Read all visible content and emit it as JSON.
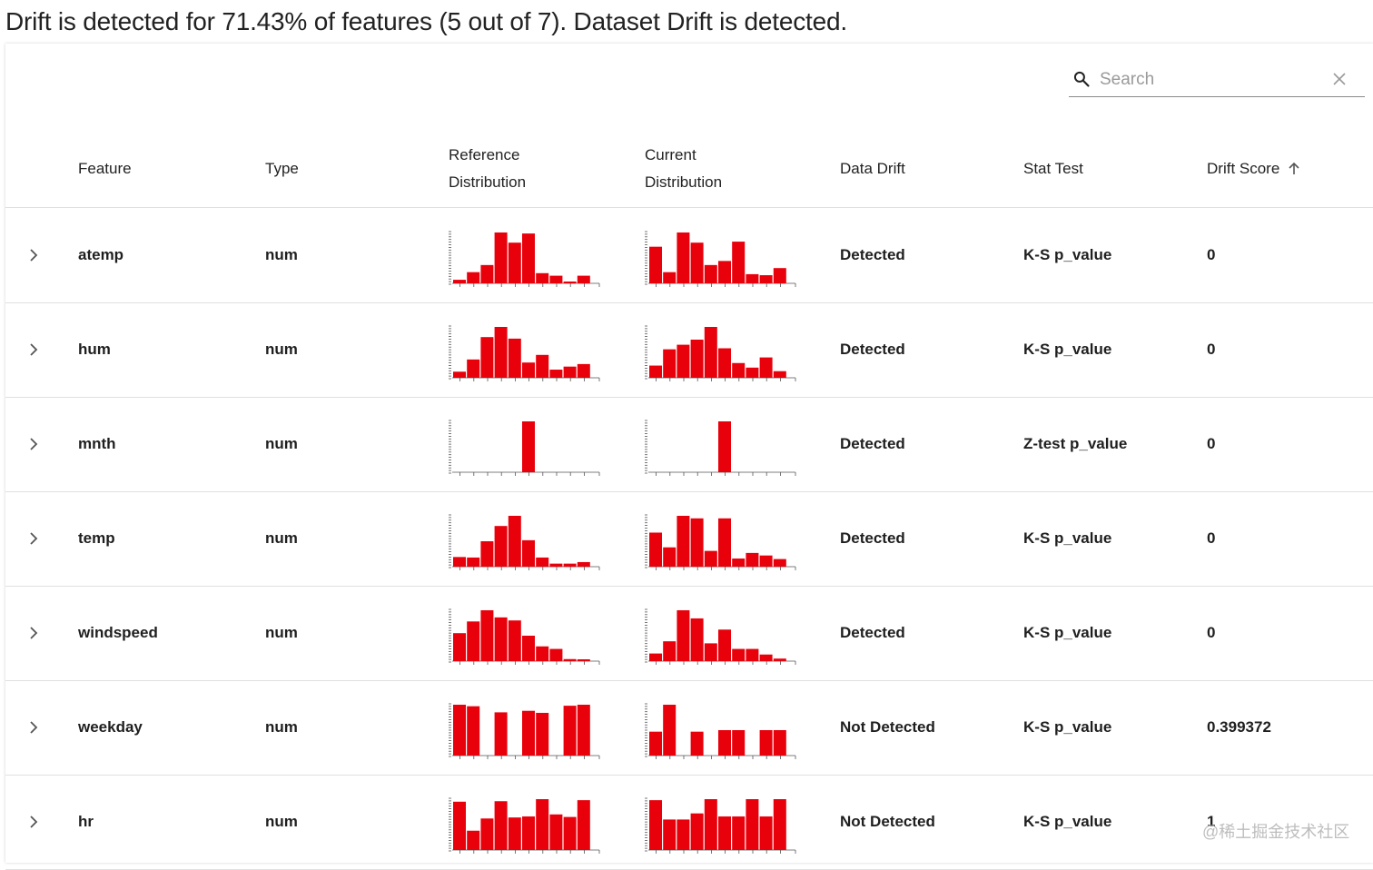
{
  "summary": "Drift is detected for 71.43% of features (5 out of 7). Dataset Drift is detected.",
  "search": {
    "placeholder": "Search",
    "value": ""
  },
  "columns": {
    "feature": "Feature",
    "type": "Type",
    "ref_line1": "Reference",
    "ref_line2": "Distribution",
    "cur_line1": "Current",
    "cur_line2": "Distribution",
    "drift": "Data Drift",
    "stat": "Stat Test",
    "score": "Drift Score"
  },
  "colors": {
    "bar": "#e8000b",
    "axis": "#555555",
    "divider": "#e0e0e0"
  },
  "icons": {
    "search": "search-icon",
    "clear": "close-icon",
    "sort": "arrow-up-icon",
    "expand": "chevron-right-icon"
  },
  "rows": [
    {
      "feature": "atemp",
      "type": "num",
      "drift": "Detected",
      "stat": "K-S p_value",
      "score": "0",
      "ref": [
        0.07,
        0.22,
        0.36,
        1.0,
        0.8,
        0.98,
        0.2,
        0.15,
        0.02,
        0.15
      ],
      "cur": [
        0.72,
        0.22,
        1.0,
        0.8,
        0.36,
        0.44,
        0.82,
        0.18,
        0.16,
        0.3
      ]
    },
    {
      "feature": "hum",
      "type": "num",
      "drift": "Detected",
      "stat": "K-S p_value",
      "score": "0",
      "ref": [
        0.12,
        0.36,
        0.8,
        1.0,
        0.77,
        0.3,
        0.45,
        0.16,
        0.22,
        0.27
      ],
      "cur": [
        0.24,
        0.56,
        0.65,
        0.75,
        1.0,
        0.58,
        0.29,
        0.2,
        0.4,
        0.13
      ]
    },
    {
      "feature": "mnth",
      "type": "num",
      "drift": "Detected",
      "stat": "Z-test p_value",
      "score": "0",
      "ref": [
        0,
        0,
        0,
        0,
        0,
        1.0,
        0,
        0,
        0,
        0
      ],
      "cur": [
        0,
        0,
        0,
        0,
        0,
        1.0,
        0,
        0,
        0,
        0
      ]
    },
    {
      "feature": "temp",
      "type": "num",
      "drift": "Detected",
      "stat": "K-S p_value",
      "score": "0",
      "ref": [
        0.19,
        0.18,
        0.5,
        0.8,
        1.0,
        0.52,
        0.18,
        0.06,
        0.06,
        0.09
      ],
      "cur": [
        0.67,
        0.38,
        1.0,
        0.95,
        0.31,
        0.95,
        0.16,
        0.27,
        0.22,
        0.15
      ]
    },
    {
      "feature": "windspeed",
      "type": "num",
      "drift": "Detected",
      "stat": "K-S p_value",
      "score": "0",
      "ref": [
        0.55,
        0.78,
        1.0,
        0.86,
        0.8,
        0.5,
        0.29,
        0.24,
        0.04,
        0.02
      ],
      "cur": [
        0.15,
        0.39,
        1.0,
        0.84,
        0.35,
        0.62,
        0.24,
        0.24,
        0.13,
        0.05
      ]
    },
    {
      "feature": "weekday",
      "type": "num",
      "drift": "Not Detected",
      "stat": "K-S p_value",
      "score": "0.399372",
      "ref": [
        1.0,
        0.97,
        0,
        0.85,
        0,
        0.88,
        0.84,
        0,
        0.98,
        1.0
      ],
      "cur": [
        0.47,
        1.0,
        0,
        0.47,
        0,
        0.5,
        0.5,
        0,
        0.5,
        0.5
      ]
    },
    {
      "feature": "hr",
      "type": "num",
      "drift": "Not Detected",
      "stat": "K-S p_value",
      "score": "1",
      "ref": [
        0.95,
        0.38,
        0.62,
        0.96,
        0.64,
        0.66,
        1.0,
        0.7,
        0.65,
        0.98
      ],
      "cur": [
        0.98,
        0.6,
        0.6,
        0.72,
        1.0,
        0.66,
        0.66,
        1.0,
        0.66,
        1.0
      ]
    }
  ],
  "watermark": "@稀土掘金技术社区"
}
